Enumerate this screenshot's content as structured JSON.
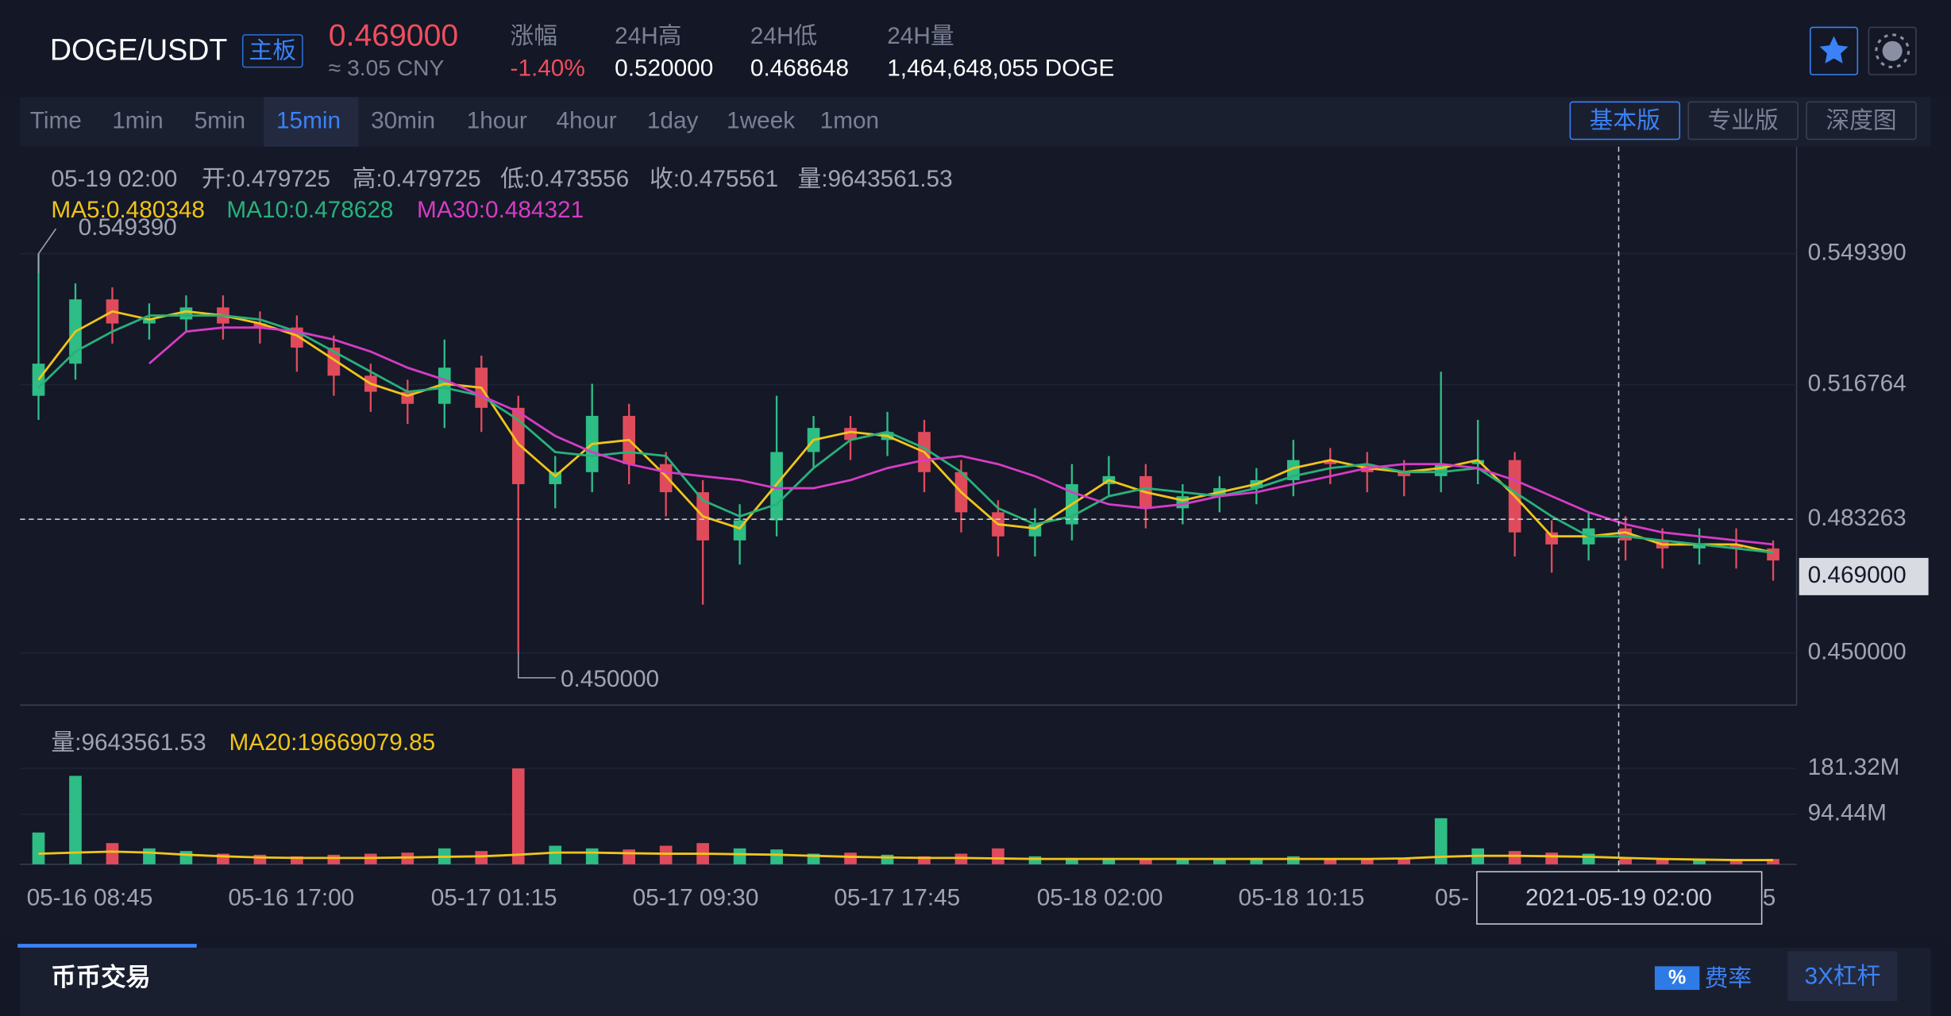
{
  "header": {
    "pair": "DOGE/USDT",
    "badge": "主板",
    "price": "0.469000",
    "cny": "≈ 3.05 CNY",
    "stats": [
      {
        "label": "涨幅",
        "value": "-1.40%"
      },
      {
        "label": "24H高",
        "value": "0.520000"
      },
      {
        "label": "24H低",
        "value": "0.468648"
      },
      {
        "label": "24H量",
        "value": "1,464,648,055 DOGE"
      }
    ]
  },
  "intervals": {
    "items": [
      "Time",
      "1min",
      "5min",
      "15min",
      "30min",
      "1hour",
      "4hour",
      "1day",
      "1week",
      "1mon"
    ],
    "active": "15min"
  },
  "views": [
    "基本版",
    "专业版",
    "深度图"
  ],
  "readout": {
    "time": "05-19 02:00",
    "open": "开:0.479725",
    "high": "高:0.479725",
    "low": "低:0.473556",
    "close": "收:0.475561",
    "volume": "量:9643561.53",
    "ma5": "MA5:0.480348",
    "ma10": "MA10:0.478628",
    "ma30": "MA30:0.484321",
    "vol_volume": "量:9643561.53",
    "vol_ma20": "MA20:19669079.85"
  },
  "footer": {
    "tab": "币币交易",
    "fee_icon": "%",
    "fee": "费率",
    "leverage": "3X杠杆"
  },
  "chart_data": {
    "type": "candlestick",
    "open": [
      0.514,
      0.522,
      0.538,
      0.532,
      0.533,
      0.536,
      0.532,
      0.531,
      0.526,
      0.519,
      0.515,
      0.512,
      0.521,
      0.511,
      0.492,
      0.495,
      0.509,
      0.497,
      0.49,
      0.478,
      0.483,
      0.5,
      0.506,
      0.503,
      0.505,
      0.495,
      0.485,
      0.479,
      0.482,
      0.492,
      0.494,
      0.486,
      0.489,
      0.491,
      0.493,
      0.498,
      0.497,
      0.495,
      0.494,
      0.497,
      0.498,
      0.48,
      0.477,
      0.481,
      0.478,
      0.476,
      0.477,
      0.476
    ],
    "high": [
      0.54939,
      0.542,
      0.541,
      0.537,
      0.539,
      0.539,
      0.535,
      0.534,
      0.529,
      0.522,
      0.518,
      0.528,
      0.524,
      0.514,
      0.499,
      0.517,
      0.512,
      0.5,
      0.493,
      0.487,
      0.514,
      0.509,
      0.509,
      0.51,
      0.508,
      0.498,
      0.488,
      0.486,
      0.497,
      0.499,
      0.497,
      0.492,
      0.494,
      0.496,
      0.503,
      0.501,
      0.5,
      0.498,
      0.52,
      0.508,
      0.5,
      0.483,
      0.485,
      0.484,
      0.481,
      0.481,
      0.481,
      0.478
    ],
    "low": [
      0.508,
      0.518,
      0.527,
      0.528,
      0.53,
      0.528,
      0.527,
      0.52,
      0.514,
      0.51,
      0.507,
      0.506,
      0.505,
      0.45,
      0.486,
      0.49,
      0.492,
      0.484,
      0.462,
      0.472,
      0.479,
      0.496,
      0.498,
      0.499,
      0.49,
      0.48,
      0.474,
      0.474,
      0.478,
      0.489,
      0.481,
      0.482,
      0.485,
      0.487,
      0.489,
      0.492,
      0.49,
      0.489,
      0.49,
      0.492,
      0.474,
      0.47,
      0.473,
      0.473,
      0.471,
      0.472,
      0.471,
      0.468
    ],
    "close": [
      0.522,
      0.538,
      0.532,
      0.533,
      0.536,
      0.532,
      0.531,
      0.526,
      0.519,
      0.515,
      0.512,
      0.521,
      0.511,
      0.492,
      0.495,
      0.509,
      0.497,
      0.49,
      0.478,
      0.483,
      0.5,
      0.506,
      0.503,
      0.505,
      0.495,
      0.485,
      0.479,
      0.482,
      0.492,
      0.494,
      0.486,
      0.489,
      0.491,
      0.493,
      0.498,
      0.497,
      0.495,
      0.494,
      0.497,
      0.498,
      0.48,
      0.477,
      0.481,
      0.478,
      0.476,
      0.477,
      0.476,
      0.473
    ],
    "up_color": "#2ebd85",
    "down_color": "#e04b5b",
    "ma_series": [
      {
        "name": "MA5",
        "color": "#f0c419",
        "values": [
          0.518,
          0.53,
          0.535,
          0.533,
          0.535,
          0.534,
          0.532,
          0.529,
          0.523,
          0.517,
          0.514,
          0.517,
          0.516,
          0.502,
          0.494,
          0.502,
          0.503,
          0.494,
          0.484,
          0.481,
          0.492,
          0.503,
          0.505,
          0.504,
          0.5,
          0.49,
          0.482,
          0.481,
          0.487,
          0.493,
          0.49,
          0.488,
          0.49,
          0.492,
          0.496,
          0.498,
          0.496,
          0.495,
          0.496,
          0.498,
          0.489,
          0.479,
          0.479,
          0.48,
          0.477,
          0.477,
          0.477,
          0.475
        ]
      },
      {
        "name": "MA10",
        "color": "#29b07a",
        "values": [
          0.516,
          0.525,
          0.53,
          0.534,
          0.534,
          0.534,
          0.533,
          0.53,
          0.525,
          0.52,
          0.515,
          0.516,
          0.514,
          0.508,
          0.5,
          0.499,
          0.5,
          0.499,
          0.488,
          0.484,
          0.487,
          0.496,
          0.503,
          0.505,
          0.501,
          0.495,
          0.486,
          0.482,
          0.484,
          0.489,
          0.491,
          0.49,
          0.489,
          0.491,
          0.494,
          0.496,
          0.497,
          0.495,
          0.495,
          0.496,
          0.49,
          0.484,
          0.479,
          0.479,
          0.478,
          0.477,
          0.476,
          0.475
        ]
      },
      {
        "name": "MA30",
        "color": "#d63cc4",
        "values": [
          null,
          null,
          null,
          0.522,
          0.53,
          0.531,
          0.531,
          0.53,
          0.528,
          0.525,
          0.521,
          0.518,
          0.514,
          0.51,
          0.504,
          0.5,
          0.497,
          0.495,
          0.494,
          0.493,
          0.491,
          0.491,
          0.493,
          0.496,
          0.498,
          0.499,
          0.497,
          0.494,
          0.49,
          0.487,
          0.486,
          0.487,
          0.489,
          0.49,
          0.492,
          0.494,
          0.496,
          0.497,
          0.497,
          0.496,
          0.493,
          0.489,
          0.485,
          0.482,
          0.48,
          0.479,
          0.478,
          0.477
        ]
      }
    ],
    "ylim": [
      0.437,
      0.576
    ],
    "yticks": [
      {
        "value": 0.54939,
        "label": "0.549390"
      },
      {
        "value": 0.516764,
        "label": "0.516764"
      },
      {
        "value": 0.483263,
        "label": "0.483263"
      },
      {
        "value": 0.45,
        "label": "0.450000"
      }
    ],
    "price_tag": {
      "value": 0.469,
      "label": "0.469000"
    },
    "annotations": {
      "max": {
        "value": 0.54939,
        "label": "0.549390"
      },
      "min": {
        "value": 0.45,
        "label": "0.450000"
      }
    },
    "xticks": [
      "05-16 08:45",
      "05-16 17:00",
      "05-17 01:15",
      "05-17 09:30",
      "05-17 17:45",
      "05-18 02:00",
      "05-18 10:15",
      "05-",
      "5"
    ],
    "crosshair": {
      "label": "2021-05-19 02:00"
    },
    "volume": [
      60,
      167,
      40,
      30,
      25,
      20,
      18,
      15,
      18,
      20,
      22,
      30,
      25,
      181,
      35,
      30,
      28,
      35,
      40,
      30,
      28,
      20,
      22,
      18,
      15,
      20,
      30,
      15,
      12,
      12,
      10,
      10,
      10,
      12,
      15,
      10,
      10,
      12,
      87,
      30,
      25,
      22,
      20,
      12,
      10,
      10,
      10,
      10
    ],
    "volume_ma": {
      "name": "MA20",
      "color": "#f0c419",
      "values": [
        20,
        22,
        24,
        22,
        18,
        15,
        13,
        12,
        12,
        12,
        13,
        14,
        15,
        18,
        22,
        22,
        21,
        20,
        20,
        19,
        18,
        16,
        14,
        13,
        12,
        12,
        11,
        10,
        10,
        10,
        10,
        10,
        10,
        10,
        10,
        10,
        10,
        11,
        14,
        16,
        16,
        15,
        14,
        12,
        10,
        9,
        8,
        8
      ]
    },
    "vlim": [
      0,
      281.8
    ],
    "vticks": [
      {
        "value": 181.32,
        "label": "181.32M"
      },
      {
        "value": 94.44,
        "label": "94.44M"
      }
    ]
  }
}
